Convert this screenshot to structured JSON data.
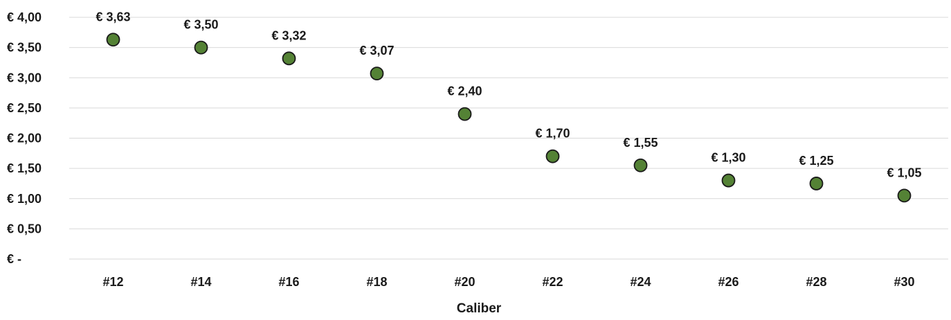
{
  "chart_data": {
    "type": "scatter",
    "title": "",
    "xlabel": "Caliber",
    "ylabel": "",
    "categories": [
      "#12",
      "#14",
      "#16",
      "#18",
      "#20",
      "#22",
      "#24",
      "#26",
      "#28",
      "#30"
    ],
    "values": [
      3.63,
      3.5,
      3.32,
      3.07,
      2.4,
      1.7,
      1.55,
      1.3,
      1.25,
      1.05
    ],
    "data_labels": [
      "€ 3,63",
      "€ 3,50",
      "€ 3,32",
      "€ 3,07",
      "€ 2,40",
      "€ 1,70",
      "€ 1,55",
      "€ 1,30",
      "€ 1,25",
      "€ 1,05"
    ],
    "y_ticks": [
      0,
      0.5,
      1.0,
      1.5,
      2.0,
      2.5,
      3.0,
      3.5,
      4.0
    ],
    "y_tick_labels": [
      "€ -",
      "€ 0,50",
      "€ 1,00",
      "€ 1,50",
      "€ 2,00",
      "€ 2,50",
      "€ 3,00",
      "€ 3,50",
      "€ 4,00"
    ],
    "ylim": [
      0,
      4.0
    ],
    "grid": true,
    "legend": "none",
    "colors": {
      "marker_fill": "#548235",
      "marker_stroke": "#1a1a1a",
      "grid": "#d9d9d9",
      "text": "#1a1a1a"
    }
  }
}
